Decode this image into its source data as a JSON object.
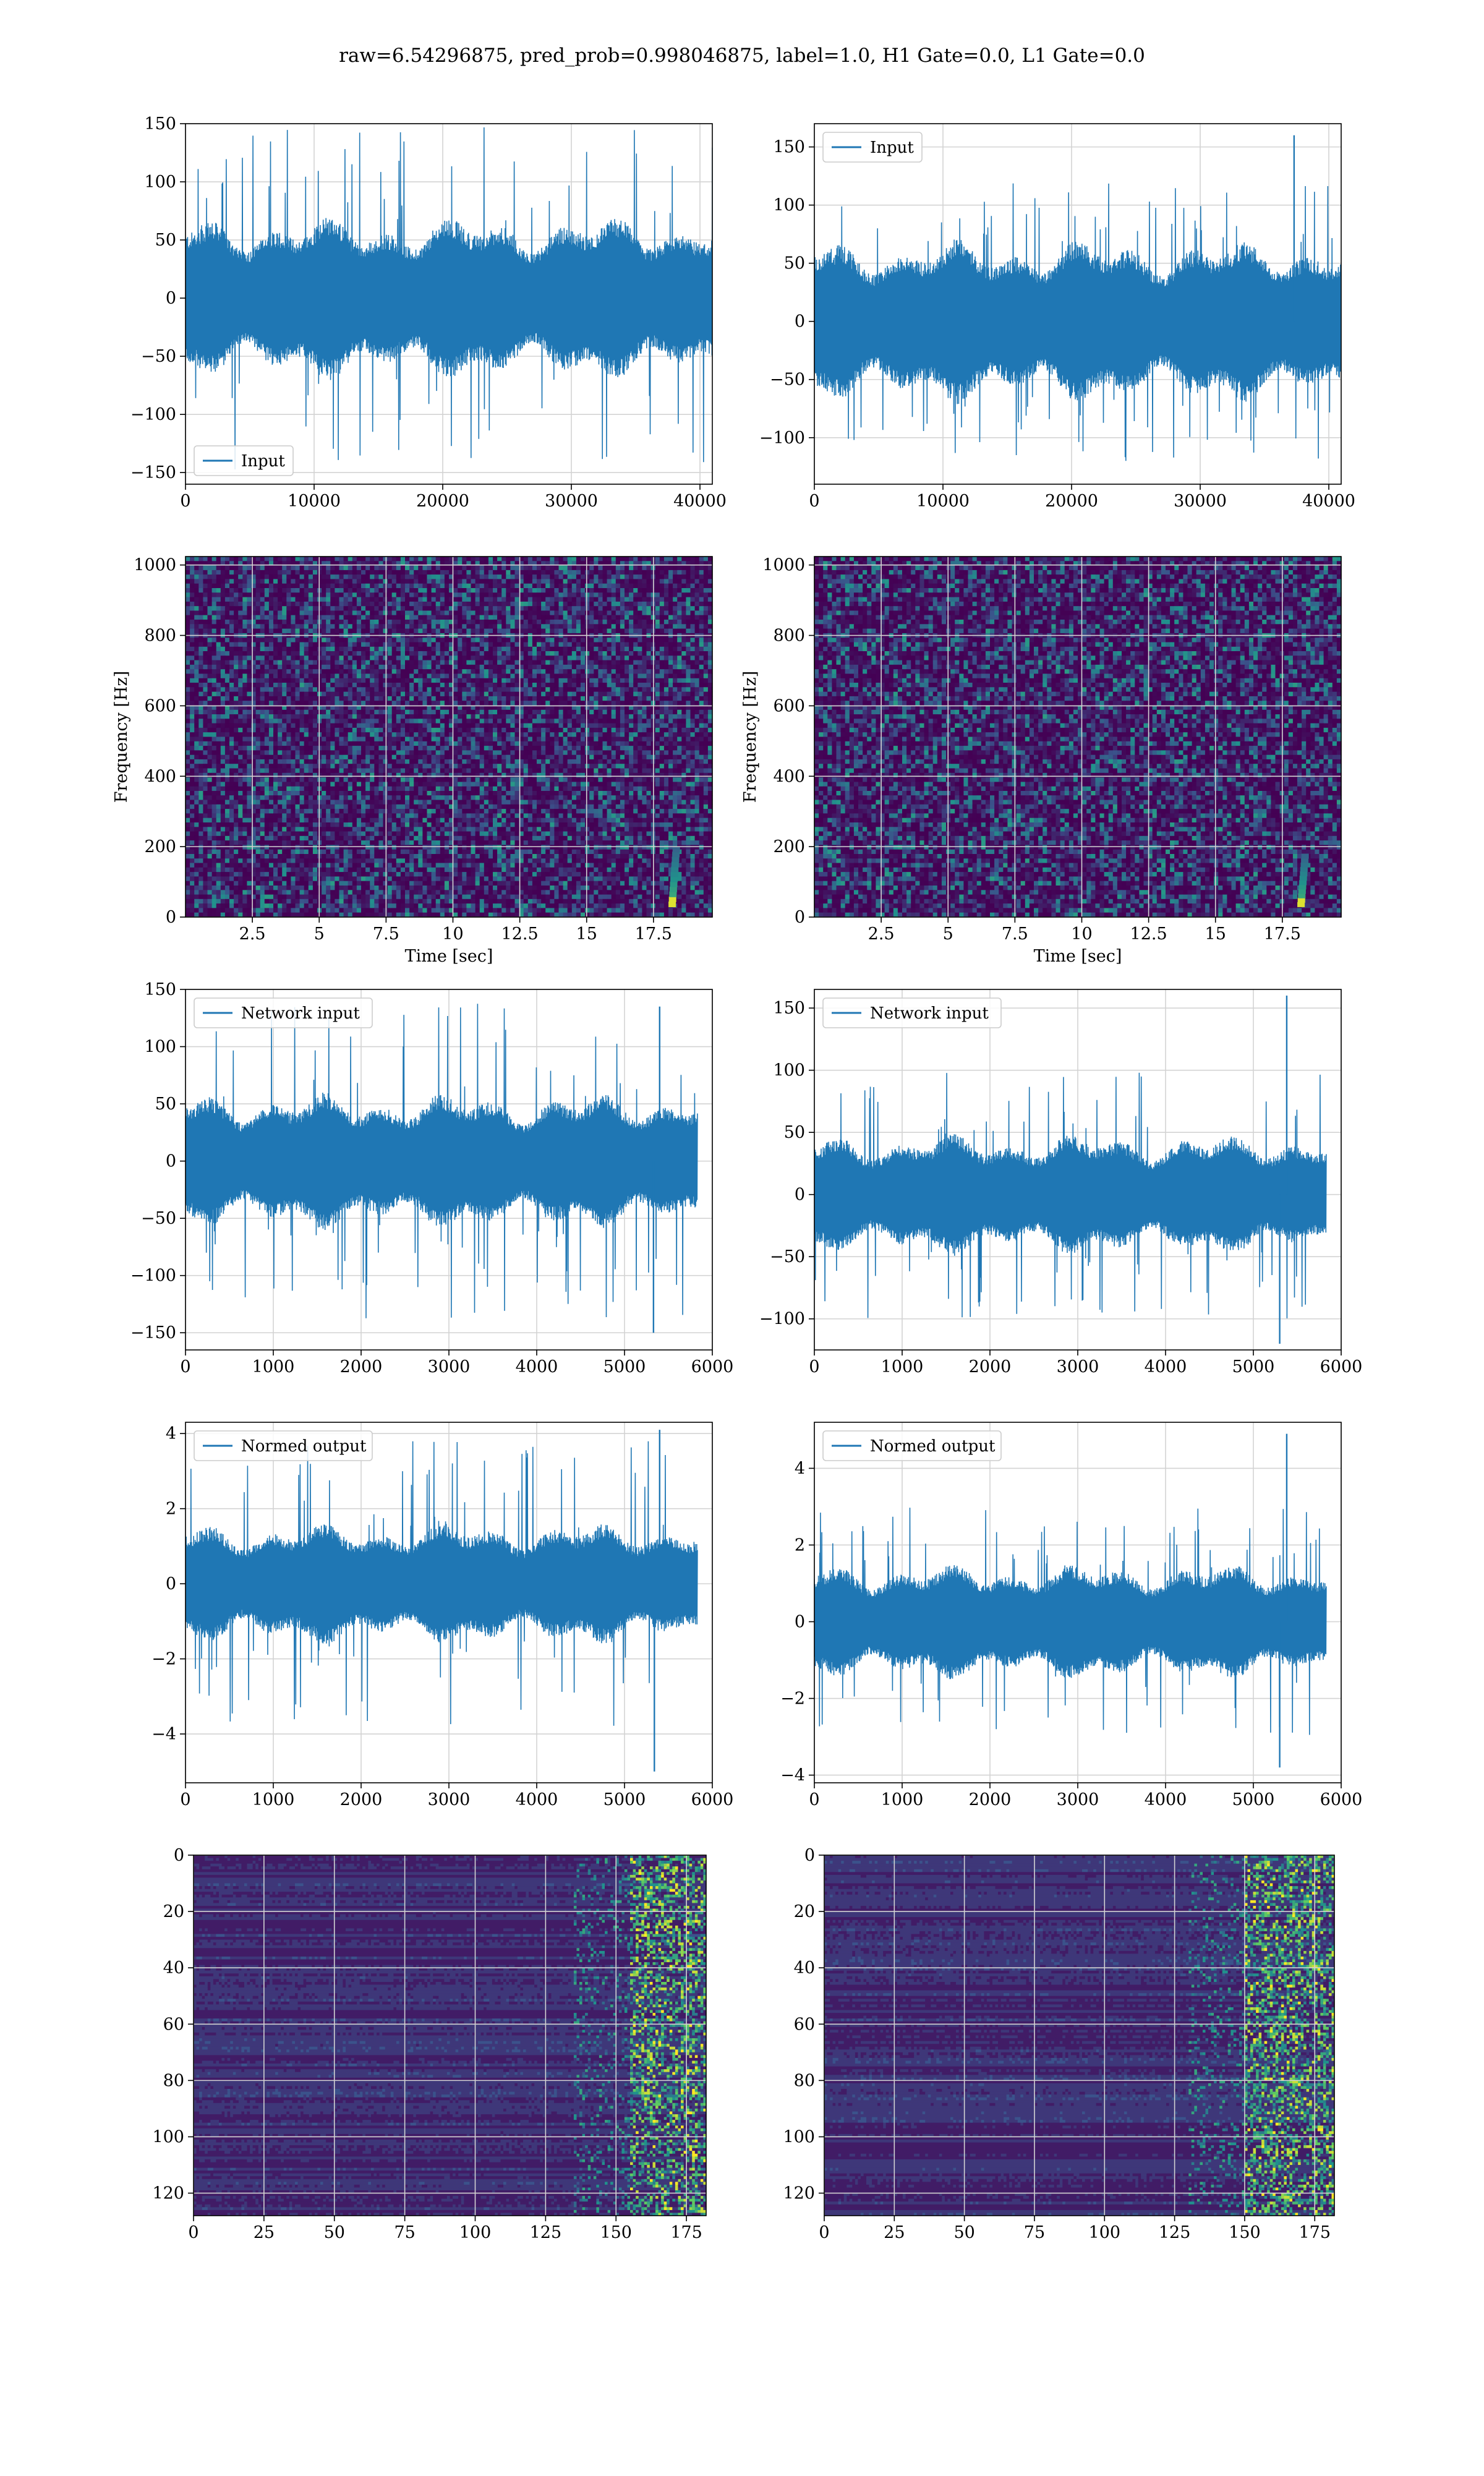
{
  "figure": {
    "title": "raw=6.54296875, pred_prob=0.998046875, label=1.0, H1 Gate=0.0, L1 Gate=0.0"
  },
  "theme": {
    "line_color": "#1f77b4",
    "grid_color": "#d3d3d3",
    "viridis_low": "#440154",
    "viridis_mid": "#21918c",
    "viridis_high": "#fde725"
  },
  "chart_data": [
    {
      "id": "input-h1",
      "type": "line",
      "series_name": "Input",
      "legend": "lower-left",
      "xlim": [
        0,
        40960
      ],
      "ylim": [
        -160,
        150
      ],
      "xticks": [
        0,
        10000,
        20000,
        30000,
        40000
      ],
      "yticks": [
        150,
        100,
        50,
        0,
        -50,
        -100,
        -150
      ],
      "x_range": [
        0,
        40960
      ],
      "envelope_amplitude": 65,
      "peak_amplitude": 148,
      "spikes": [],
      "xlabel": "",
      "ylabel": "",
      "grid": true
    },
    {
      "id": "input-l1",
      "type": "line",
      "series_name": "Input",
      "legend": "upper-left",
      "xlim": [
        0,
        40960
      ],
      "ylim": [
        -140,
        170
      ],
      "xticks": [
        0,
        10000,
        20000,
        30000,
        40000
      ],
      "yticks": [
        150,
        100,
        50,
        0,
        -50,
        -100
      ],
      "x_range": [
        0,
        40960
      ],
      "envelope_amplitude": 65,
      "peak_amplitude": 120,
      "spikes": [
        {
          "x": 37300,
          "y": 160
        }
      ],
      "xlabel": "",
      "ylabel": "",
      "grid": true
    },
    {
      "id": "spec-h1",
      "type": "heatmap",
      "colormap": "viridis",
      "xlim": [
        0,
        19.7
      ],
      "ylim": [
        0,
        1024
      ],
      "xticks": [
        2.5,
        5.0,
        7.5,
        10.0,
        12.5,
        15.0,
        17.5
      ],
      "yticks": [
        0,
        200,
        400,
        600,
        800,
        1000
      ],
      "xlabel": "Time [sec]",
      "ylabel": "Frequency [Hz]",
      "chirp": {
        "t": 18.2,
        "f_low": 30,
        "f_high": 200
      },
      "grid": true
    },
    {
      "id": "spec-l1",
      "type": "heatmap",
      "colormap": "viridis",
      "xlim": [
        0,
        19.7
      ],
      "ylim": [
        0,
        1024
      ],
      "xticks": [
        2.5,
        5.0,
        7.5,
        10.0,
        12.5,
        15.0,
        17.5
      ],
      "yticks": [
        0,
        200,
        400,
        600,
        800,
        1000
      ],
      "xlabel": "Time [sec]",
      "ylabel": "Frequency [Hz]",
      "chirp": {
        "t": 18.2,
        "f_low": 30,
        "f_high": 180
      },
      "grid": true
    },
    {
      "id": "net-h1",
      "type": "line",
      "series_name": "Network input",
      "legend": "upper-left",
      "xlim": [
        0,
        6000
      ],
      "ylim": [
        -165,
        150
      ],
      "xticks": [
        0,
        1000,
        2000,
        3000,
        4000,
        5000,
        6000
      ],
      "yticks": [
        150,
        100,
        50,
        0,
        -50,
        -100,
        -150
      ],
      "x_range": [
        0,
        5830
      ],
      "envelope_amplitude": 55,
      "peak_amplitude": 140,
      "spikes": [
        {
          "x": 5330,
          "y": -150
        },
        {
          "x": 5400,
          "y": 135
        }
      ],
      "xlabel": "",
      "ylabel": "",
      "grid": true
    },
    {
      "id": "net-l1",
      "type": "line",
      "series_name": "Network input",
      "legend": "upper-left",
      "xlim": [
        0,
        6000
      ],
      "ylim": [
        -125,
        165
      ],
      "xticks": [
        0,
        1000,
        2000,
        3000,
        4000,
        5000,
        6000
      ],
      "yticks": [
        150,
        100,
        50,
        0,
        -50,
        -100
      ],
      "x_range": [
        0,
        5830
      ],
      "envelope_amplitude": 45,
      "peak_amplitude": 100,
      "spikes": [
        {
          "x": 5380,
          "y": 160
        },
        {
          "x": 5300,
          "y": -120
        }
      ],
      "xlabel": "",
      "ylabel": "",
      "grid": true
    },
    {
      "id": "norm-h1",
      "type": "line",
      "series_name": "Normed output",
      "legend": "upper-left",
      "xlim": [
        0,
        6000
      ],
      "ylim": [
        -5.3,
        4.3
      ],
      "xticks": [
        0,
        1000,
        2000,
        3000,
        4000,
        5000,
        6000
      ],
      "yticks": [
        4,
        2,
        0,
        -2,
        -4
      ],
      "x_range": [
        0,
        5830
      ],
      "envelope_amplitude": 1.5,
      "peak_amplitude": 3.8,
      "spikes": [
        {
          "x": 5340,
          "y": -5.0
        },
        {
          "x": 5400,
          "y": 4.1
        }
      ],
      "xlabel": "",
      "ylabel": "",
      "grid": true
    },
    {
      "id": "norm-l1",
      "type": "line",
      "series_name": "Normed output",
      "legend": "upper-left",
      "xlim": [
        0,
        6000
      ],
      "ylim": [
        -4.2,
        5.2
      ],
      "xticks": [
        0,
        1000,
        2000,
        3000,
        4000,
        5000,
        6000
      ],
      "yticks": [
        4,
        2,
        0,
        -2,
        -4
      ],
      "x_range": [
        0,
        5830
      ],
      "envelope_amplitude": 1.4,
      "peak_amplitude": 3.0,
      "spikes": [
        {
          "x": 5380,
          "y": 4.9
        },
        {
          "x": 5300,
          "y": -3.8
        }
      ],
      "xlabel": "",
      "ylabel": "",
      "grid": true
    },
    {
      "id": "emb-h1",
      "type": "heatmap",
      "colormap": "viridis",
      "y_inverted": true,
      "xlim": [
        0,
        182
      ],
      "ylim": [
        128,
        0
      ],
      "xticks": [
        0,
        25,
        50,
        75,
        100,
        125,
        150,
        175
      ],
      "yticks": [
        0,
        20,
        40,
        60,
        80,
        100,
        120
      ],
      "bright_region": [
        155,
        182
      ],
      "xlabel": "",
      "ylabel": "",
      "grid": true
    },
    {
      "id": "emb-l1",
      "type": "heatmap",
      "colormap": "viridis",
      "y_inverted": true,
      "xlim": [
        0,
        182
      ],
      "ylim": [
        128,
        0
      ],
      "xticks": [
        0,
        25,
        50,
        75,
        100,
        125,
        150,
        175
      ],
      "yticks": [
        0,
        20,
        40,
        60,
        80,
        100,
        120
      ],
      "bright_region": [
        150,
        182
      ],
      "xlabel": "",
      "ylabel": "",
      "grid": true
    }
  ]
}
